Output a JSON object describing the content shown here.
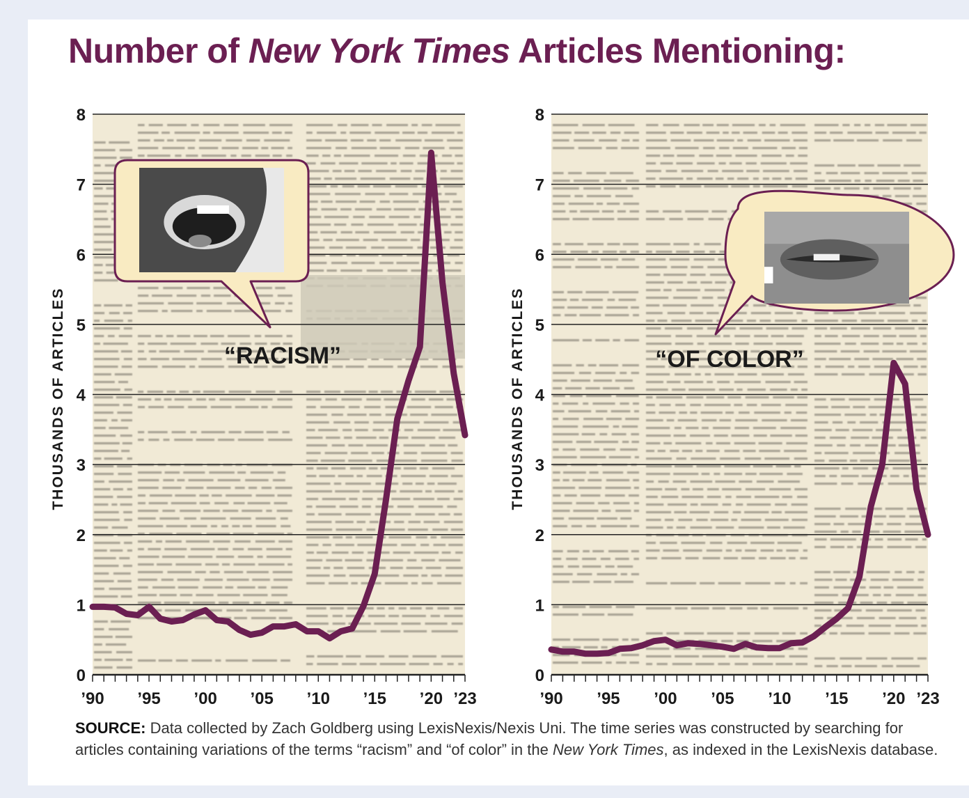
{
  "title": {
    "prefix": "Number of ",
    "italic": "New York Times",
    "suffix": " Articles Mentioning:"
  },
  "colors": {
    "line": "#6b1f52",
    "paper": "#f1ead6",
    "bubble_fill": "#f9ebc2",
    "bubble_stroke": "#6b1f52"
  },
  "chart_data": [
    {
      "type": "line",
      "annotation": "“RACISM”",
      "icon": "speaking-mouth-icon",
      "ylabel": "THOUSANDS OF ARTICLES",
      "ylim": [
        0,
        8
      ],
      "yticks": [
        0,
        1,
        2,
        3,
        4,
        5,
        6,
        7,
        8
      ],
      "xlim": [
        1990,
        2023
      ],
      "xtick_labels": [
        {
          "year": 1990,
          "label": "’90"
        },
        {
          "year": 1995,
          "label": "’95"
        },
        {
          "year": 2000,
          "label": "’00"
        },
        {
          "year": 2005,
          "label": "’05"
        },
        {
          "year": 2010,
          "label": "’10"
        },
        {
          "year": 2015,
          "label": "’15"
        },
        {
          "year": 2020,
          "label": "’20"
        },
        {
          "year": 2023,
          "label": "’23"
        }
      ],
      "x": [
        1990,
        1991,
        1992,
        1993,
        1994,
        1995,
        1996,
        1997,
        1998,
        1999,
        2000,
        2001,
        2002,
        2003,
        2004,
        2005,
        2006,
        2007,
        2008,
        2009,
        2010,
        2011,
        2012,
        2013,
        2014,
        2015,
        2016,
        2017,
        2018,
        2019,
        2020,
        2021,
        2022,
        2023
      ],
      "values": [
        0.97,
        0.97,
        0.96,
        0.87,
        0.85,
        0.97,
        0.8,
        0.76,
        0.78,
        0.86,
        0.92,
        0.78,
        0.76,
        0.64,
        0.57,
        0.6,
        0.69,
        0.69,
        0.72,
        0.62,
        0.62,
        0.52,
        0.62,
        0.66,
        0.98,
        1.44,
        2.5,
        3.65,
        4.2,
        4.68,
        7.45,
        5.6,
        4.3,
        3.42
      ]
    },
    {
      "type": "line",
      "annotation": "“OF COLOR”",
      "icon": "lips-icon",
      "ylabel": "THOUSANDS OF ARTICLES",
      "ylim": [
        0,
        8
      ],
      "yticks": [
        0,
        1,
        2,
        3,
        4,
        5,
        6,
        7,
        8
      ],
      "xlim": [
        1990,
        2023
      ],
      "xtick_labels": [
        {
          "year": 1990,
          "label": "’90"
        },
        {
          "year": 1995,
          "label": "’95"
        },
        {
          "year": 2000,
          "label": "’00"
        },
        {
          "year": 2005,
          "label": "’05"
        },
        {
          "year": 2010,
          "label": "’10"
        },
        {
          "year": 2015,
          "label": "’15"
        },
        {
          "year": 2020,
          "label": "’20"
        },
        {
          "year": 2023,
          "label": "’23"
        }
      ],
      "x": [
        1990,
        1991,
        1992,
        1993,
        1994,
        1995,
        1996,
        1997,
        1998,
        1999,
        2000,
        2001,
        2002,
        2003,
        2004,
        2005,
        2006,
        2007,
        2008,
        2009,
        2010,
        2011,
        2012,
        2013,
        2014,
        2015,
        2016,
        2017,
        2018,
        2019,
        2020,
        2021,
        2022,
        2023
      ],
      "values": [
        0.36,
        0.33,
        0.33,
        0.3,
        0.3,
        0.31,
        0.37,
        0.38,
        0.42,
        0.48,
        0.5,
        0.42,
        0.45,
        0.44,
        0.42,
        0.4,
        0.37,
        0.44,
        0.39,
        0.38,
        0.38,
        0.45,
        0.46,
        0.55,
        0.68,
        0.8,
        0.95,
        1.4,
        2.4,
        3.0,
        4.45,
        4.15,
        2.65,
        2.0
      ]
    }
  ],
  "source": {
    "label": "SOURCE:",
    "text_1": " Data collected by Zach Goldberg using LexisNexis/Nexis Uni. The time series was constructed by searching for articles containing variations of the terms “racism” and “of color” in the ",
    "italic": "New York Times",
    "text_2": ", as indexed in the LexisNexis database."
  }
}
